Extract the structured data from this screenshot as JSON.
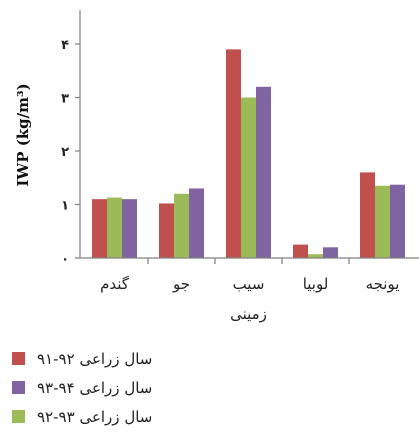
{
  "chart_data": {
    "type": "bar",
    "ylabel": "IWP (kg/m³)",
    "ylim": [
      0,
      4
    ],
    "yticks": [
      0,
      1,
      2,
      3,
      4
    ],
    "ytick_labels": [
      "۰",
      "۱",
      "۲",
      "۳",
      "۴"
    ],
    "categories": [
      "گندم",
      "جو",
      "سیب زمینی",
      "لوبیا",
      "یونجه"
    ],
    "category_lines": [
      [
        "گندم"
      ],
      [
        "جو"
      ],
      [
        "سیب",
        "زمینی"
      ],
      [
        "لوبیا"
      ],
      [
        "یونجه"
      ]
    ],
    "series": [
      {
        "name": "سال زراعی ۹۲-۹۱",
        "color": "#c0504d",
        "values": [
          1.1,
          1.02,
          3.9,
          0.25,
          1.6
        ]
      },
      {
        "name": "سال زراعی ۹۳-۹۲",
        "color": "#9bbb59",
        "values": [
          1.13,
          1.2,
          3.0,
          0.07,
          1.35
        ]
      },
      {
        "name": "سال زراعی ۹۴-۹۳",
        "color": "#8064a2",
        "values": [
          1.1,
          1.3,
          3.2,
          0.2,
          1.37
        ]
      }
    ],
    "legend_order": [
      0,
      2,
      1
    ],
    "legend_position": "bottom-left",
    "grid": false
  }
}
